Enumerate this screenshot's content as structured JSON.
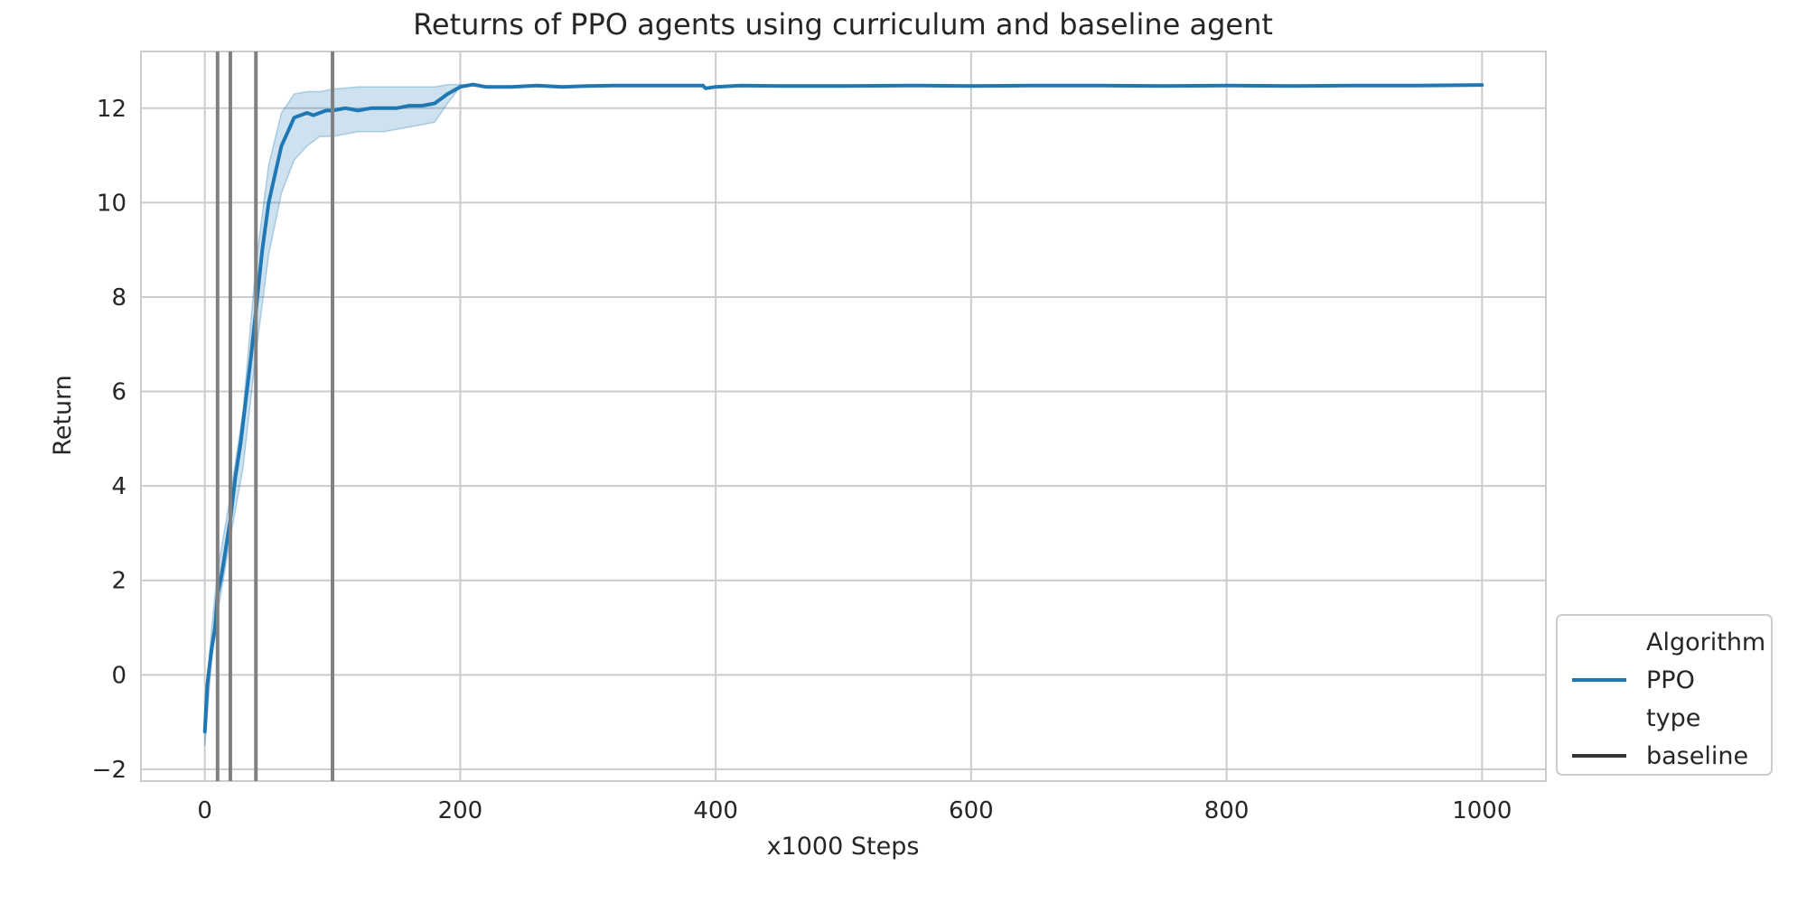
{
  "chart_data": {
    "type": "line",
    "title": "Returns of PPO agents using curriculum and baseline agent",
    "xlabel": "x1000 Steps",
    "ylabel": "Return",
    "xlim": [
      -50,
      1050
    ],
    "ylim": [
      -2.25,
      13.2
    ],
    "xticks": [
      0,
      200,
      400,
      600,
      800,
      1000
    ],
    "yticks": [
      -2,
      0,
      2,
      4,
      6,
      8,
      10,
      12
    ],
    "xtick_labels": [
      "0",
      "200",
      "400",
      "600",
      "800",
      "1000"
    ],
    "ytick_labels": [
      "−2",
      "0",
      "2",
      "4",
      "6",
      "8",
      "10",
      "12"
    ],
    "grid": true,
    "vlines": [
      10,
      20,
      40,
      100
    ],
    "legend": {
      "placement": "lower-right-outside",
      "entries": [
        {
          "label": "Algorithm",
          "marker": "none"
        },
        {
          "label": "PPO",
          "marker": "line",
          "color": "#1f77b4"
        },
        {
          "label": "type",
          "marker": "none"
        },
        {
          "label": "baseline",
          "marker": "line",
          "color": "#333333"
        }
      ]
    },
    "series": [
      {
        "name": "PPO",
        "color": "#1f77b4",
        "x": [
          0,
          2,
          5,
          8,
          10,
          13,
          16,
          20,
          24,
          28,
          32,
          36,
          40,
          45,
          50,
          55,
          60,
          65,
          70,
          75,
          80,
          85,
          90,
          95,
          100,
          110,
          120,
          130,
          140,
          150,
          160,
          170,
          180,
          190,
          200,
          210,
          220,
          240,
          260,
          280,
          300,
          320,
          340,
          360,
          380,
          390,
          392,
          400,
          420,
          450,
          500,
          550,
          600,
          650,
          700,
          750,
          800,
          850,
          900,
          950,
          1000
        ],
        "y": [
          -1.2,
          -0.2,
          0.5,
          1.0,
          1.7,
          2.1,
          2.6,
          3.3,
          4.2,
          4.9,
          5.8,
          6.7,
          7.7,
          9.0,
          10.0,
          10.6,
          11.2,
          11.5,
          11.8,
          11.85,
          11.9,
          11.85,
          11.9,
          11.95,
          11.95,
          12.0,
          11.95,
          12.0,
          12.0,
          12.0,
          12.05,
          12.05,
          12.1,
          12.3,
          12.45,
          12.5,
          12.45,
          12.45,
          12.48,
          12.45,
          12.47,
          12.48,
          12.48,
          12.48,
          12.48,
          12.48,
          12.42,
          12.45,
          12.48,
          12.47,
          12.47,
          12.48,
          12.47,
          12.48,
          12.48,
          12.47,
          12.48,
          12.47,
          12.48,
          12.48,
          12.49
        ],
        "band_x": [
          0,
          5,
          10,
          20,
          30,
          40,
          50,
          60,
          70,
          80,
          90,
          100,
          120,
          140,
          160,
          180,
          190,
          200,
          210
        ],
        "band_lower": [
          -1.5,
          0.2,
          1.3,
          2.9,
          4.4,
          6.8,
          8.9,
          10.2,
          10.9,
          11.2,
          11.4,
          11.4,
          11.5,
          11.5,
          11.6,
          11.7,
          12.1,
          12.45,
          12.5
        ],
        "band_upper": [
          -0.9,
          0.9,
          2.2,
          3.8,
          5.6,
          8.7,
          10.8,
          11.9,
          12.3,
          12.35,
          12.35,
          12.4,
          12.45,
          12.45,
          12.45,
          12.45,
          12.5,
          12.5,
          12.5
        ]
      }
    ]
  }
}
